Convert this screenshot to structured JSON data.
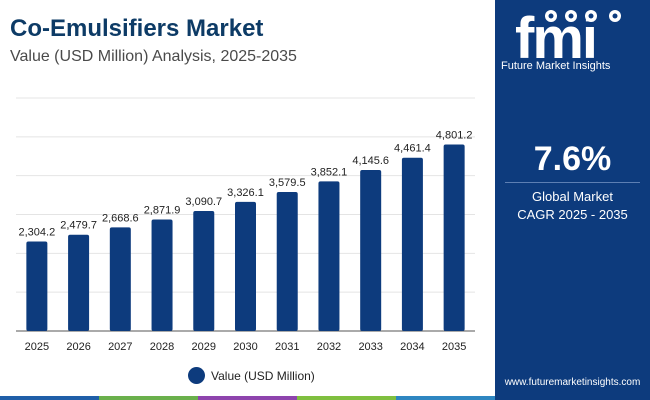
{
  "header": {
    "title": "Co-Emulsifiers Market",
    "subtitle": "Value (USD Million) Analysis, 2025-2035"
  },
  "chart_data": {
    "type": "bar",
    "categories": [
      "2025",
      "2026",
      "2027",
      "2028",
      "2029",
      "2030",
      "2031",
      "2032",
      "2033",
      "2034",
      "2035"
    ],
    "series": [
      {
        "name": "Value (USD Million)",
        "values": [
          2304.2,
          2479.7,
          2668.6,
          2871.9,
          3090.7,
          3326.1,
          3579.5,
          3852.1,
          4145.6,
          4461.4,
          4801.2
        ],
        "labels": [
          "2,304.2",
          "2,479.7",
          "2,668.6",
          "2,871.9",
          "3,090.7",
          "3,326.1",
          "3,579.5",
          "3,852.1",
          "4,145.6",
          "4,461.4",
          "4,801.2"
        ]
      }
    ],
    "ylim": [
      0,
      6000
    ],
    "grid": true,
    "legend_position": "bottom-center",
    "bar_color": "#0d3b7d"
  },
  "legend": {
    "label": "Value (USD Million)"
  },
  "side_panel": {
    "logo_text": "Future Market Insights",
    "cagr_value": "7.6%",
    "cagr_label_line1": "Global Market",
    "cagr_label_line2": "CAGR 2025 - 2035",
    "website": "www.futuremarketinsights.com",
    "background": "#0d3b7d"
  },
  "bottom_bar_colors": [
    "#1f5fa8",
    "#6ab04c",
    "#8e44ad",
    "#7fbf3f",
    "#2e86c1"
  ]
}
